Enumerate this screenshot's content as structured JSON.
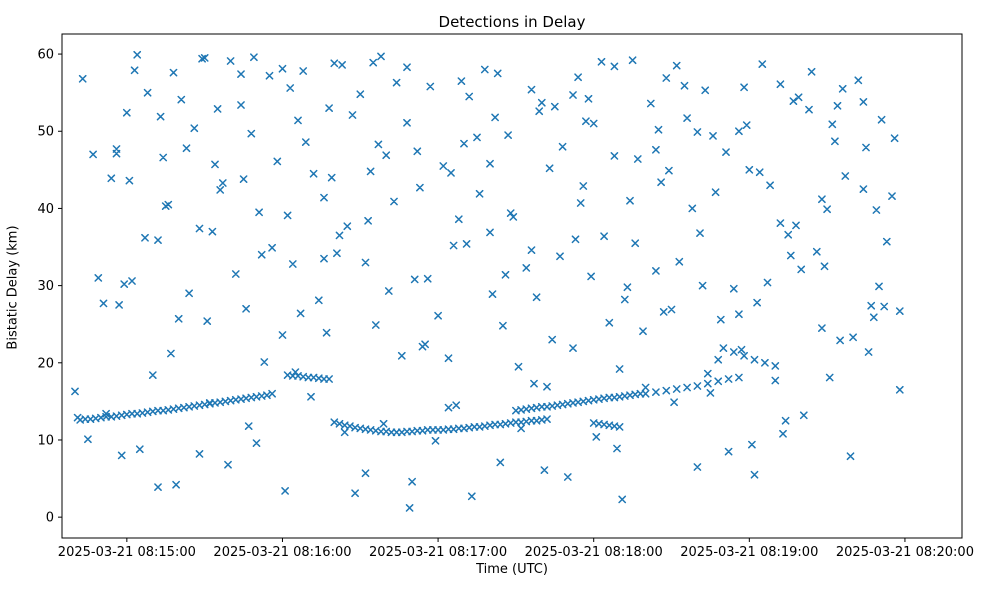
{
  "figure": {
    "title": "Detections in Delay",
    "xlabel": "Time (UTC)",
    "ylabel": "Bistatic Delay (km)"
  },
  "chart_data": {
    "type": "scatter",
    "title": "Detections in Delay",
    "xlabel": "Time (UTC)",
    "ylabel": "Bistatic Delay (km)",
    "marker": "x",
    "marker_color": "#1f77b4",
    "grid": false,
    "legend": "none",
    "x_unit": "seconds relative to 2025-03-21 08:15:00 UTC",
    "y_unit": "km",
    "xlim": [
      -25,
      322
    ],
    "ylim": [
      -2.7,
      62.6
    ],
    "x_ticks": [
      {
        "t": 0,
        "label": "2025-03-21 08:15:00"
      },
      {
        "t": 60,
        "label": "2025-03-21 08:16:00"
      },
      {
        "t": 120,
        "label": "2025-03-21 08:17:00"
      },
      {
        "t": 180,
        "label": "2025-03-21 08:18:00"
      },
      {
        "t": 240,
        "label": "2025-03-21 08:19:00"
      },
      {
        "t": 300,
        "label": "2025-03-21 08:20:00"
      }
    ],
    "y_ticks": [
      {
        "v": 0,
        "label": "0"
      },
      {
        "v": 10,
        "label": "10"
      },
      {
        "v": 20,
        "label": "20"
      },
      {
        "v": 30,
        "label": "30"
      },
      {
        "v": 40,
        "label": "40"
      },
      {
        "v": 50,
        "label": "50"
      },
      {
        "v": 60,
        "label": "60"
      }
    ],
    "points": [
      [
        -20,
        16.3
      ],
      [
        -4,
        47.1
      ],
      [
        12,
        35.9
      ],
      [
        28,
        8.2
      ],
      [
        44,
        53.4
      ],
      [
        60,
        58.1
      ],
      [
        76,
        33.5
      ],
      [
        92,
        5.7
      ],
      [
        108,
        58.3
      ],
      [
        124,
        20.6
      ],
      [
        140,
        45.8
      ],
      [
        156,
        34.6
      ],
      [
        172,
        54.7
      ],
      [
        188,
        58.4
      ],
      [
        204,
        47.6
      ],
      [
        220,
        49.9
      ],
      [
        236,
        26.3
      ],
      [
        252,
        56.1
      ],
      [
        268,
        41.2
      ],
      [
        284,
        53.8
      ],
      [
        -19,
        12.9
      ],
      [
        -3,
        27.5
      ],
      [
        13,
        51.9
      ],
      [
        29,
        59.4
      ],
      [
        45,
        43.8
      ],
      [
        61,
        3.4
      ],
      [
        77,
        23.9
      ],
      [
        93,
        38.4
      ],
      [
        109,
        1.2
      ],
      [
        125,
        44.6
      ],
      [
        141,
        28.9
      ],
      [
        157,
        17.3
      ],
      [
        173,
        36.0
      ],
      [
        189,
        8.9
      ],
      [
        205,
        50.2
      ],
      [
        221,
        36.8
      ],
      [
        237,
        21.7
      ],
      [
        253,
        10.8
      ],
      [
        269,
        32.5
      ],
      [
        285,
        47.9
      ],
      [
        -17,
        56.8
      ],
      [
        -1,
        30.2
      ],
      [
        15,
        40.3
      ],
      [
        31,
        25.4
      ],
      [
        47,
        11.8
      ],
      [
        63,
        55.6
      ],
      [
        79,
        44.0
      ],
      [
        95,
        58.9
      ],
      [
        111,
        30.8
      ],
      [
        127,
        14.5
      ],
      [
        143,
        57.5
      ],
      [
        159,
        52.6
      ],
      [
        175,
        40.7
      ],
      [
        191,
        2.3
      ],
      [
        207,
        26.6
      ],
      [
        223,
        55.3
      ],
      [
        239,
        50.8
      ],
      [
        255,
        36.6
      ],
      [
        271,
        18.1
      ],
      [
        287,
        27.4
      ],
      [
        -15,
        10.1
      ],
      [
        1,
        43.6
      ],
      [
        17,
        21.2
      ],
      [
        33,
        37.0
      ],
      [
        49,
        59.6
      ],
      [
        65,
        18.8
      ],
      [
        81,
        34.2
      ],
      [
        97,
        48.3
      ],
      [
        113,
        42.7
      ],
      [
        129,
        56.5
      ],
      [
        145,
        24.8
      ],
      [
        161,
        6.1
      ],
      [
        177,
        51.3
      ],
      [
        193,
        29.8
      ],
      [
        209,
        44.9
      ],
      [
        225,
        16.1
      ],
      [
        241,
        9.4
      ],
      [
        257,
        53.9
      ],
      [
        273,
        48.7
      ],
      [
        289,
        39.8
      ],
      [
        -13,
        47.0
      ],
      [
        3,
        57.9
      ],
      [
        19,
        4.2
      ],
      [
        35,
        52.9
      ],
      [
        51,
        39.5
      ],
      [
        67,
        26.4
      ],
      [
        83,
        58.6
      ],
      [
        99,
        12.1
      ],
      [
        115,
        22.4
      ],
      [
        131,
        35.4
      ],
      [
        147,
        49.5
      ],
      [
        163,
        45.2
      ],
      [
        179,
        31.2
      ],
      [
        195,
        59.2
      ],
      [
        211,
        14.9
      ],
      [
        227,
        42.1
      ],
      [
        243,
        27.8
      ],
      [
        259,
        54.4
      ],
      [
        275,
        22.9
      ],
      [
        291,
        51.5
      ],
      [
        -11,
        31.0
      ],
      [
        5,
        8.8
      ],
      [
        21,
        54.1
      ],
      [
        37,
        43.3
      ],
      [
        53,
        20.1
      ],
      [
        69,
        48.6
      ],
      [
        85,
        37.7
      ],
      [
        101,
        29.3
      ],
      [
        117,
        55.8
      ],
      [
        133,
        2.7
      ],
      [
        149,
        38.9
      ],
      [
        165,
        53.2
      ],
      [
        181,
        10.4
      ],
      [
        197,
        46.4
      ],
      [
        213,
        33.1
      ],
      [
        229,
        25.6
      ],
      [
        245,
        58.7
      ],
      [
        261,
        13.2
      ],
      [
        277,
        44.2
      ],
      [
        293,
        35.7
      ],
      [
        -9,
        27.7
      ],
      [
        7,
        36.2
      ],
      [
        23,
        47.8
      ],
      [
        39,
        6.8
      ],
      [
        55,
        57.2
      ],
      [
        71,
        15.6
      ],
      [
        87,
        52.1
      ],
      [
        103,
        40.9
      ],
      [
        119,
        9.9
      ],
      [
        135,
        49.2
      ],
      [
        151,
        19.5
      ],
      [
        167,
        33.8
      ],
      [
        183,
        59.0
      ],
      [
        199,
        24.1
      ],
      [
        215,
        55.9
      ],
      [
        231,
        47.3
      ],
      [
        247,
        30.4
      ],
      [
        263,
        52.8
      ],
      [
        279,
        7.9
      ],
      [
        295,
        41.6
      ],
      [
        -8,
        13.4
      ],
      [
        8,
        55.0
      ],
      [
        24,
        29.0
      ],
      [
        40,
        59.1
      ],
      [
        56,
        34.9
      ],
      [
        72,
        44.5
      ],
      [
        88,
        3.1
      ],
      [
        104,
        56.3
      ],
      [
        120,
        26.1
      ],
      [
        136,
        41.9
      ],
      [
        152,
        11.5
      ],
      [
        168,
        48.0
      ],
      [
        184,
        36.4
      ],
      [
        200,
        16.8
      ],
      [
        216,
        51.7
      ],
      [
        232,
        8.5
      ],
      [
        248,
        43.0
      ],
      [
        264,
        57.7
      ],
      [
        280,
        23.3
      ],
      [
        296,
        49.1
      ],
      [
        -6,
        43.9
      ],
      [
        10,
        18.4
      ],
      [
        26,
        50.4
      ],
      [
        42,
        31.5
      ],
      [
        58,
        46.1
      ],
      [
        74,
        28.1
      ],
      [
        90,
        54.8
      ],
      [
        106,
        20.9
      ],
      [
        122,
        45.5
      ],
      [
        138,
        58.0
      ],
      [
        154,
        32.3
      ],
      [
        170,
        5.2
      ],
      [
        186,
        25.2
      ],
      [
        202,
        53.6
      ],
      [
        218,
        40.0
      ],
      [
        234,
        29.6
      ],
      [
        250,
        17.7
      ],
      [
        266,
        34.4
      ],
      [
        282,
        56.6
      ],
      [
        298,
        26.7
      ],
      [
        -4,
        47.7
      ],
      [
        12,
        3.9
      ],
      [
        28,
        37.4
      ],
      [
        44,
        57.4
      ],
      [
        60,
        23.6
      ],
      [
        76,
        41.4
      ],
      [
        92,
        33.0
      ],
      [
        108,
        51.1
      ],
      [
        124,
        14.2
      ],
      [
        140,
        36.9
      ],
      [
        156,
        55.4
      ],
      [
        172,
        21.9
      ],
      [
        188,
        46.8
      ],
      [
        204,
        31.9
      ],
      [
        220,
        6.5
      ],
      [
        236,
        50.0
      ],
      [
        252,
        38.1
      ],
      [
        268,
        24.5
      ],
      [
        284,
        42.5
      ],
      [
        298,
        16.5
      ],
      [
        -2,
        8.0
      ],
      [
        14,
        46.6
      ],
      [
        30,
        59.5
      ],
      [
        46,
        27.0
      ],
      [
        62,
        39.1
      ],
      [
        78,
        53.0
      ],
      [
        94,
        44.8
      ],
      [
        110,
        4.6
      ],
      [
        126,
        35.2
      ],
      [
        142,
        51.8
      ],
      [
        158,
        28.5
      ],
      [
        174,
        57.0
      ],
      [
        190,
        19.2
      ],
      [
        206,
        43.4
      ],
      [
        222,
        30.0
      ],
      [
        238,
        55.7
      ],
      [
        254,
        12.5
      ],
      [
        270,
        39.9
      ],
      [
        286,
        21.4
      ],
      [
        0,
        52.4
      ],
      [
        16,
        40.5
      ],
      [
        32,
        14.8
      ],
      [
        48,
        49.7
      ],
      [
        64,
        32.8
      ],
      [
        80,
        58.8
      ],
      [
        96,
        24.9
      ],
      [
        112,
        47.4
      ],
      [
        128,
        38.6
      ],
      [
        144,
        7.1
      ],
      [
        160,
        53.7
      ],
      [
        176,
        42.9
      ],
      [
        192,
        28.2
      ],
      [
        208,
        56.9
      ],
      [
        224,
        18.6
      ],
      [
        240,
        45.0
      ],
      [
        256,
        33.9
      ],
      [
        272,
        50.9
      ],
      [
        288,
        25.9
      ],
      [
        2,
        30.6
      ],
      [
        18,
        57.6
      ],
      [
        34,
        45.7
      ],
      [
        50,
        9.6
      ],
      [
        66,
        51.4
      ],
      [
        82,
        36.5
      ],
      [
        98,
        59.7
      ],
      [
        114,
        22.1
      ],
      [
        130,
        48.4
      ],
      [
        146,
        31.4
      ],
      [
        162,
        16.9
      ],
      [
        178,
        54.2
      ],
      [
        194,
        41.0
      ],
      [
        210,
        26.9
      ],
      [
        226,
        49.4
      ],
      [
        242,
        5.5
      ],
      [
        258,
        37.8
      ],
      [
        274,
        53.3
      ],
      [
        290,
        29.9
      ],
      [
        4,
        59.9
      ],
      [
        20,
        25.7
      ],
      [
        36,
        42.4
      ],
      [
        52,
        34.0
      ],
      [
        68,
        57.8
      ],
      [
        84,
        11.0
      ],
      [
        100,
        46.9
      ],
      [
        116,
        30.9
      ],
      [
        132,
        54.5
      ],
      [
        148,
        39.4
      ],
      [
        164,
        23.0
      ],
      [
        180,
        51.0
      ],
      [
        196,
        35.5
      ],
      [
        212,
        58.5
      ],
      [
        228,
        20.4
      ],
      [
        244,
        44.7
      ],
      [
        260,
        32.1
      ],
      [
        276,
        55.5
      ],
      [
        292,
        27.3
      ],
      [
        -18,
        12.6
      ],
      [
        -16,
        12.7
      ],
      [
        -14,
        12.7
      ],
      [
        -12,
        12.8
      ],
      [
        -10,
        12.9
      ],
      [
        -8,
        13.0
      ],
      [
        -6,
        13.0
      ],
      [
        -4,
        13.1
      ],
      [
        -2,
        13.2
      ],
      [
        0,
        13.3
      ],
      [
        2,
        13.4
      ],
      [
        4,
        13.4
      ],
      [
        6,
        13.5
      ],
      [
        8,
        13.6
      ],
      [
        10,
        13.7
      ],
      [
        12,
        13.8
      ],
      [
        14,
        13.8
      ],
      [
        16,
        13.9
      ],
      [
        18,
        14.0
      ],
      [
        20,
        14.1
      ],
      [
        22,
        14.2
      ],
      [
        24,
        14.3
      ],
      [
        26,
        14.4
      ],
      [
        28,
        14.5
      ],
      [
        30,
        14.6
      ],
      [
        32,
        14.7
      ],
      [
        34,
        14.8
      ],
      [
        36,
        14.9
      ],
      [
        38,
        15.0
      ],
      [
        40,
        15.1
      ],
      [
        42,
        15.2
      ],
      [
        44,
        15.3
      ],
      [
        46,
        15.4
      ],
      [
        48,
        15.5
      ],
      [
        50,
        15.6
      ],
      [
        52,
        15.7
      ],
      [
        54,
        15.8
      ],
      [
        56,
        16.0
      ],
      [
        62,
        18.4
      ],
      [
        64,
        18.3
      ],
      [
        66,
        18.3
      ],
      [
        68,
        18.2
      ],
      [
        70,
        18.1
      ],
      [
        72,
        18.1
      ],
      [
        74,
        18.0
      ],
      [
        76,
        17.9
      ],
      [
        78,
        17.9
      ],
      [
        80,
        12.3
      ],
      [
        82,
        12.1
      ],
      [
        84,
        11.9
      ],
      [
        86,
        11.8
      ],
      [
        88,
        11.6
      ],
      [
        90,
        11.5
      ],
      [
        92,
        11.4
      ],
      [
        94,
        11.3
      ],
      [
        96,
        11.2
      ],
      [
        98,
        11.1
      ],
      [
        100,
        11.1
      ],
      [
        102,
        11.0
      ],
      [
        104,
        11.0
      ],
      [
        106,
        11.0
      ],
      [
        108,
        11.1
      ],
      [
        110,
        11.1
      ],
      [
        112,
        11.2
      ],
      [
        114,
        11.2
      ],
      [
        116,
        11.3
      ],
      [
        118,
        11.3
      ],
      [
        120,
        11.3
      ],
      [
        122,
        11.3
      ],
      [
        124,
        11.4
      ],
      [
        126,
        11.4
      ],
      [
        128,
        11.5
      ],
      [
        130,
        11.5
      ],
      [
        132,
        11.6
      ],
      [
        134,
        11.7
      ],
      [
        136,
        11.7
      ],
      [
        138,
        11.8
      ],
      [
        140,
        11.9
      ],
      [
        142,
        12.0
      ],
      [
        144,
        12.0
      ],
      [
        146,
        12.1
      ],
      [
        148,
        12.2
      ],
      [
        150,
        12.3
      ],
      [
        152,
        12.3
      ],
      [
        154,
        12.4
      ],
      [
        156,
        12.5
      ],
      [
        158,
        12.5
      ],
      [
        160,
        12.6
      ],
      [
        162,
        12.7
      ],
      [
        150,
        13.8
      ],
      [
        152,
        13.9
      ],
      [
        154,
        14.0
      ],
      [
        156,
        14.1
      ],
      [
        158,
        14.2
      ],
      [
        160,
        14.3
      ],
      [
        162,
        14.3
      ],
      [
        164,
        14.4
      ],
      [
        166,
        14.5
      ],
      [
        168,
        14.6
      ],
      [
        170,
        14.7
      ],
      [
        172,
        14.8
      ],
      [
        174,
        14.9
      ],
      [
        176,
        15.0
      ],
      [
        178,
        15.1
      ],
      [
        180,
        15.2
      ],
      [
        182,
        15.3
      ],
      [
        184,
        15.4
      ],
      [
        186,
        15.5
      ],
      [
        188,
        15.5
      ],
      [
        190,
        15.6
      ],
      [
        192,
        15.7
      ],
      [
        194,
        15.8
      ],
      [
        196,
        15.9
      ],
      [
        198,
        16.0
      ],
      [
        200,
        16.0
      ],
      [
        204,
        16.2
      ],
      [
        208,
        16.4
      ],
      [
        212,
        16.6
      ],
      [
        216,
        16.8
      ],
      [
        220,
        17.0
      ],
      [
        224,
        17.3
      ],
      [
        228,
        17.6
      ],
      [
        232,
        17.9
      ],
      [
        236,
        18.1
      ],
      [
        230,
        21.9
      ],
      [
        234,
        21.4
      ],
      [
        238,
        20.9
      ],
      [
        242,
        20.4
      ],
      [
        246,
        20.0
      ],
      [
        250,
        19.6
      ],
      [
        180,
        12.2
      ],
      [
        182,
        12.1
      ],
      [
        184,
        12.0
      ],
      [
        186,
        11.9
      ],
      [
        188,
        11.8
      ],
      [
        190,
        11.7
      ]
    ]
  }
}
